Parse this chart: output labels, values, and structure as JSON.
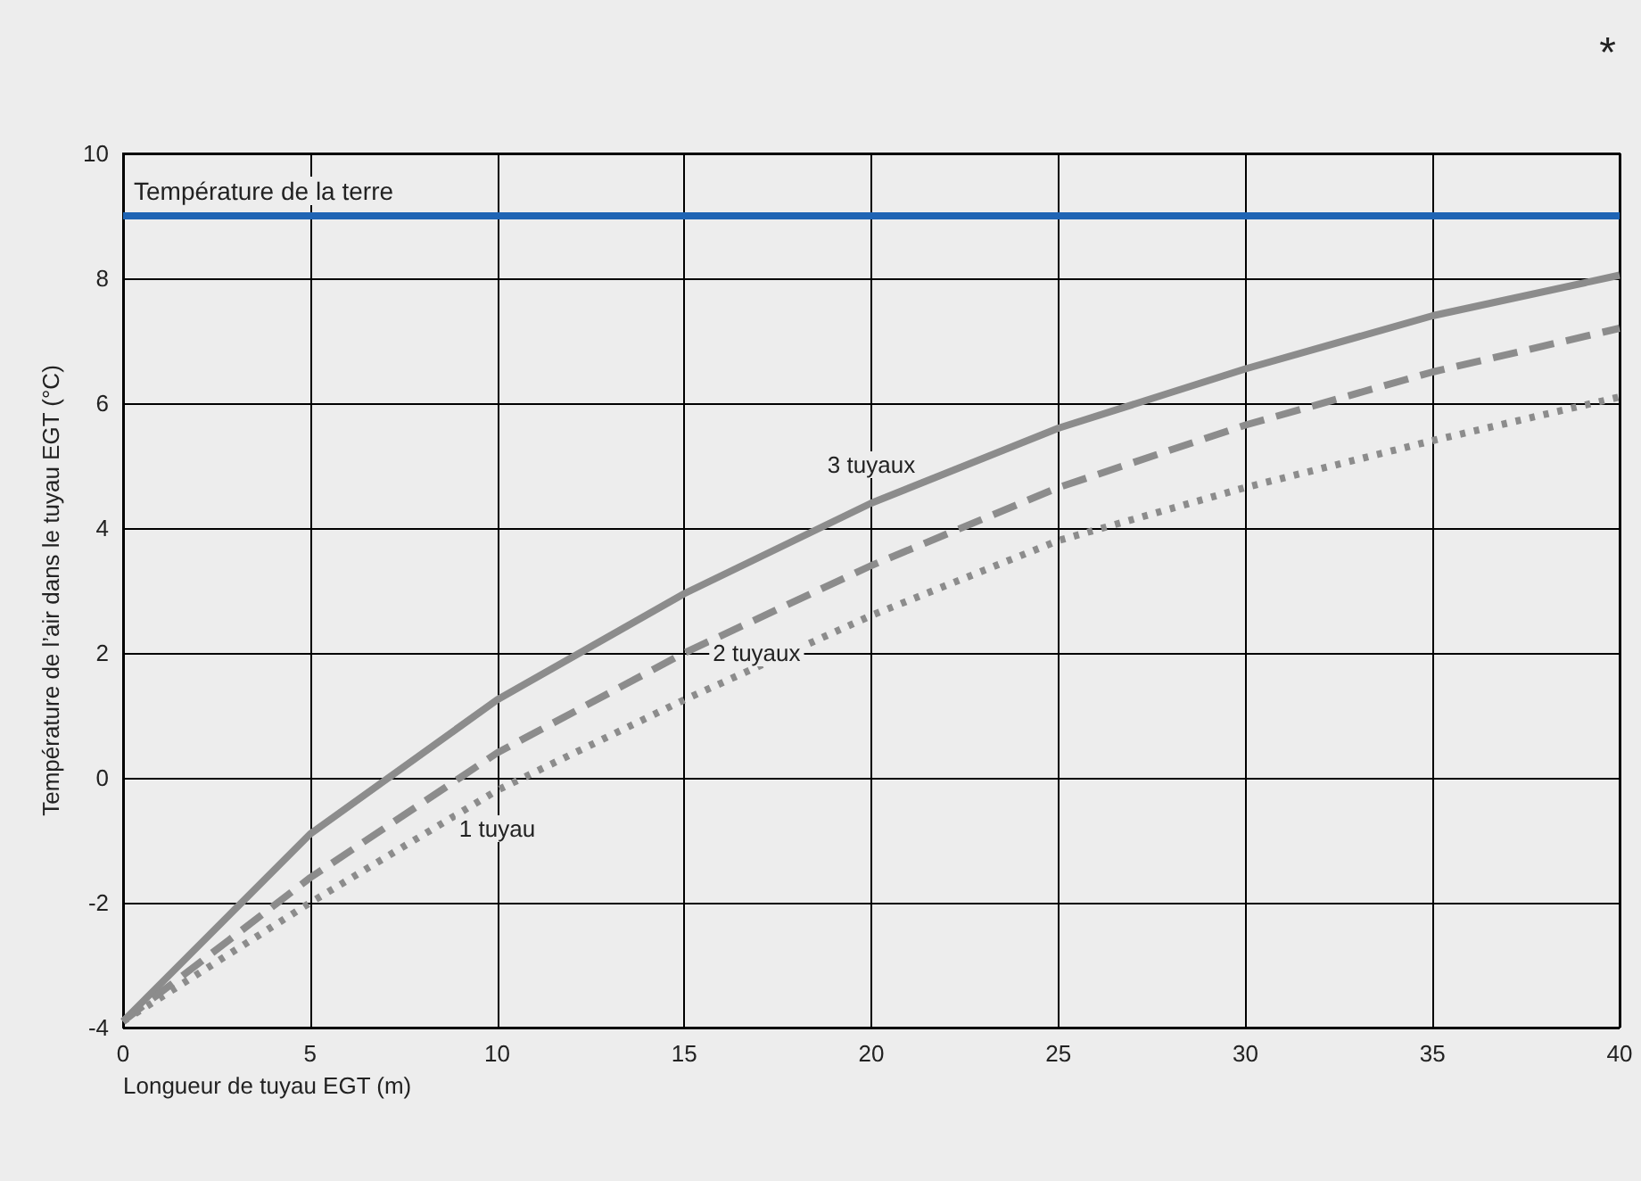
{
  "chart_data": {
    "type": "line",
    "xlabel": "Longueur de tuyau EGT (m)",
    "ylabel": "Température de l’air dans le tuyau EGT (°C)",
    "x": [
      0,
      5,
      10,
      15,
      20,
      25,
      30,
      35,
      40
    ],
    "series": [
      {
        "name": "3 tuyaux",
        "color": "#8c8c8c",
        "line_style": "solid",
        "values": [
          -3.9,
          -0.9,
          1.25,
          2.95,
          4.4,
          5.6,
          6.55,
          7.4,
          8.05
        ]
      },
      {
        "name": "2 tuyaux",
        "color": "#8c8c8c",
        "line_style": "dashed",
        "values": [
          -3.9,
          -1.6,
          0.4,
          2.0,
          3.4,
          4.65,
          5.65,
          6.5,
          7.2
        ]
      },
      {
        "name": "1 tuyau",
        "color": "#8c8c8c",
        "line_style": "dotted",
        "values": [
          -3.9,
          -2.0,
          -0.2,
          1.25,
          2.6,
          3.8,
          4.65,
          5.4,
          6.1
        ]
      }
    ],
    "xlim": [
      0,
      40
    ],
    "xticks": [
      0,
      5,
      10,
      15,
      20,
      25,
      30,
      35,
      40
    ],
    "ylim": [
      -4,
      10
    ],
    "yticks": [
      -4,
      -2,
      0,
      2,
      4,
      6,
      8,
      10
    ],
    "ref_lines": [
      {
        "axis": "y",
        "value": 9,
        "label": "Température de la terre",
        "color": "#1f64b4"
      }
    ],
    "annotations": [
      "*"
    ],
    "grid": true,
    "legend": false,
    "marker": "none"
  }
}
